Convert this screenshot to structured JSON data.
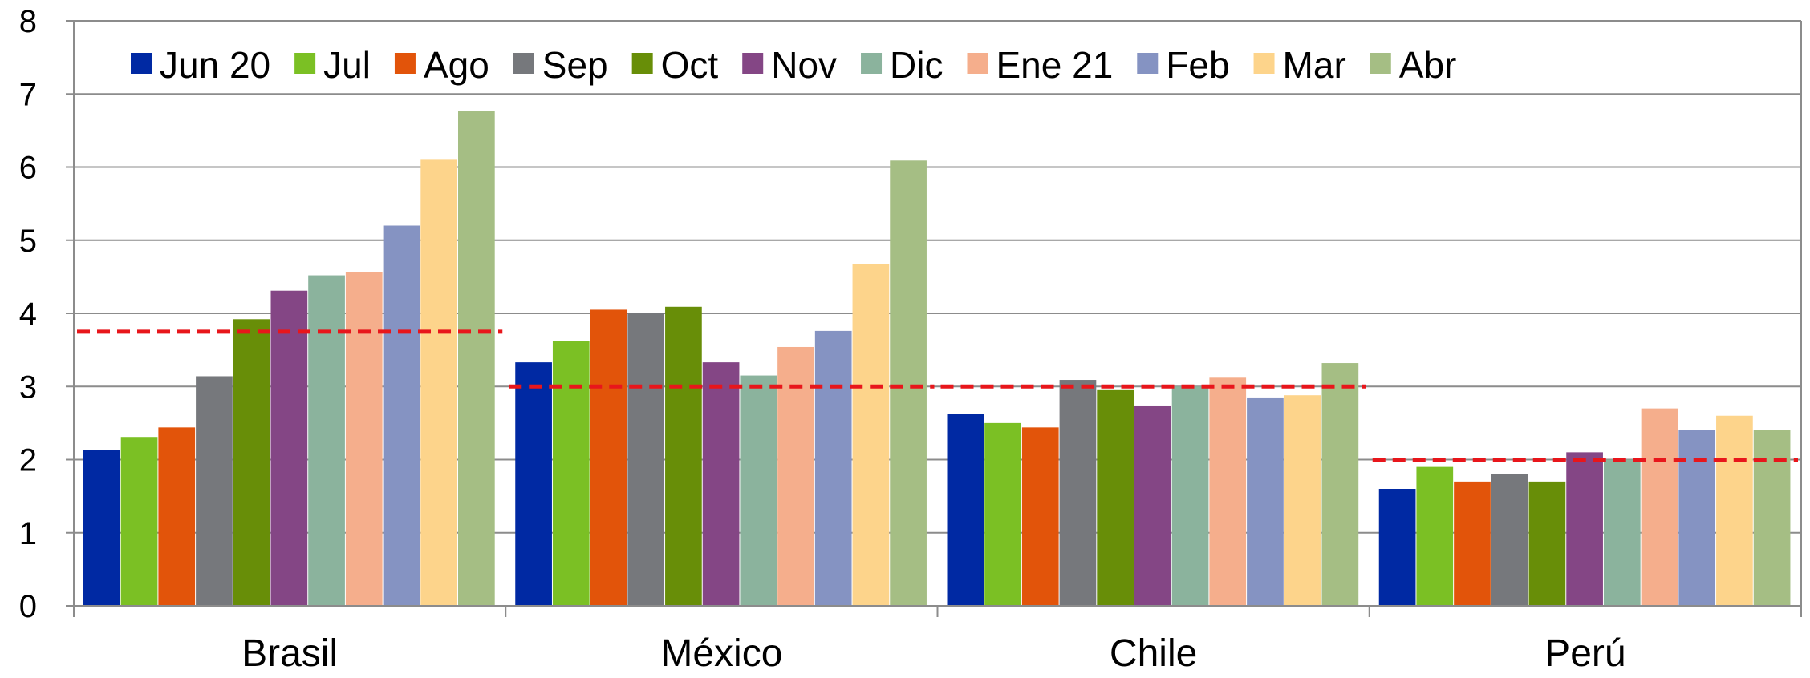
{
  "chart_data": {
    "type": "bar",
    "categories": [
      "Brasil",
      "México",
      "Chile",
      "Perú"
    ],
    "series": [
      {
        "name": "Jun 20",
        "color": "#0029A3",
        "values": [
          2.13,
          3.33,
          2.63,
          1.6
        ]
      },
      {
        "name": "Jul",
        "color": "#7BC024",
        "values": [
          2.31,
          3.62,
          2.5,
          1.9
        ]
      },
      {
        "name": "Ago",
        "color": "#E2540A",
        "values": [
          2.44,
          4.05,
          2.44,
          1.7
        ]
      },
      {
        "name": "Sep",
        "color": "#76787C",
        "values": [
          3.14,
          4.01,
          3.09,
          1.8
        ]
      },
      {
        "name": "Oct",
        "color": "#688E08",
        "values": [
          3.92,
          4.09,
          2.95,
          1.7
        ]
      },
      {
        "name": "Nov",
        "color": "#844685",
        "values": [
          4.31,
          3.33,
          2.74,
          2.1
        ]
      },
      {
        "name": "Dic",
        "color": "#8BB39D",
        "values": [
          4.52,
          3.15,
          3.0,
          2.0
        ]
      },
      {
        "name": "Ene 21",
        "color": "#F5AE8C",
        "values": [
          4.56,
          3.54,
          3.12,
          2.7
        ]
      },
      {
        "name": "Feb",
        "color": "#8593C2",
        "values": [
          5.2,
          3.76,
          2.85,
          2.4
        ]
      },
      {
        "name": "Mar",
        "color": "#FDD48B",
        "values": [
          6.1,
          4.67,
          2.88,
          2.6
        ]
      },
      {
        "name": "Abr",
        "color": "#A5BE84",
        "values": [
          6.77,
          6.09,
          3.32,
          2.4
        ]
      }
    ],
    "reference_lines": [
      {
        "category": "Brasil",
        "value": 3.75
      },
      {
        "category": "México",
        "value": 3.0
      },
      {
        "category": "Chile",
        "value": 3.0
      },
      {
        "category": "Perú",
        "value": 2.0
      }
    ],
    "reference_line_color": "#E8161B",
    "y_ticks": [
      "0",
      "1",
      "2",
      "3",
      "4",
      "5",
      "6",
      "7",
      "8"
    ],
    "ylim": [
      0,
      8
    ],
    "grid": true,
    "legend_position": "top",
    "title": "",
    "xlabel": "",
    "ylabel": ""
  }
}
